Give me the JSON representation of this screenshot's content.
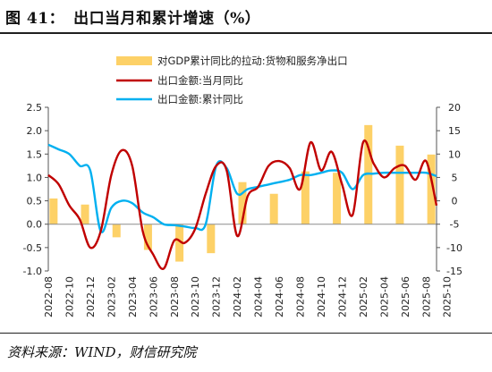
{
  "header": {
    "prefix": "图 41：",
    "title": "出口当月和累计增速（%）"
  },
  "source": "资料来源：WIND，财信研究院",
  "chart_data": {
    "type": "bar+line",
    "x_tick_labels": [
      "2022-08",
      "2022-10",
      "2022-12",
      "2023-02",
      "2023-04",
      "2023-06",
      "2023-08",
      "2023-10",
      "2023-12",
      "2024-02",
      "2024-04",
      "2024-06",
      "2024-08",
      "2024-10",
      "2024-12",
      "2025-02",
      "2025-04",
      "2025-06",
      "2025-08",
      "2025-10"
    ],
    "left_axis": {
      "ylim": [
        -1.0,
        2.5
      ],
      "ticks": [
        "-1.0",
        "-0.5",
        "0.0",
        "0.5",
        "1.0",
        "1.5",
        "2.0",
        "2.5"
      ],
      "tick_values": [
        -1.0,
        -0.5,
        0.0,
        0.5,
        1.0,
        1.5,
        2.0,
        2.5
      ]
    },
    "right_axis": {
      "ylim": [
        -15,
        20
      ],
      "ticks": [
        "-15",
        "-10",
        "-5",
        "0",
        "5",
        "10",
        "15",
        "20"
      ],
      "tick_values": [
        -15,
        -10,
        -5,
        0,
        5,
        10,
        15,
        20
      ]
    },
    "series": [
      {
        "name": "对GDP累计同比的拉动:货物和服务净出口",
        "type": "bar",
        "axis": "left",
        "color": "#fdd167",
        "points": [
          {
            "x": 0.5,
            "y": 0.55
          },
          {
            "x": 3.5,
            "y": 0.42
          },
          {
            "x": 6.5,
            "y": -0.28
          },
          {
            "x": 9.5,
            "y": -0.55
          },
          {
            "x": 12.5,
            "y": -0.8
          },
          {
            "x": 15.5,
            "y": -0.62
          },
          {
            "x": 18.5,
            "y": 0.9
          },
          {
            "x": 21.5,
            "y": 0.65
          },
          {
            "x": 24.5,
            "y": 1.13
          },
          {
            "x": 27.5,
            "y": 1.1
          },
          {
            "x": 30.5,
            "y": 2.12
          },
          {
            "x": 33.5,
            "y": 1.68
          },
          {
            "x": 36.5,
            "y": 1.49
          }
        ]
      },
      {
        "name": "出口金额:当月同比",
        "type": "line",
        "axis": "right",
        "color": "#c00000",
        "points": [
          {
            "x": 0,
            "y": 5.5
          },
          {
            "x": 1,
            "y": 3.5
          },
          {
            "x": 2,
            "y": -1
          },
          {
            "x": 3,
            "y": -4
          },
          {
            "x": 4,
            "y": -10
          },
          {
            "x": 5,
            "y": -6.5
          },
          {
            "x": 6,
            "y": 5.5
          },
          {
            "x": 7,
            "y": 10.8
          },
          {
            "x": 8,
            "y": 7.5
          },
          {
            "x": 9,
            "y": -6.5
          },
          {
            "x": 10,
            "y": -11.5
          },
          {
            "x": 11,
            "y": -14.5
          },
          {
            "x": 12,
            "y": -8.5
          },
          {
            "x": 13,
            "y": -9
          },
          {
            "x": 14,
            "y": -6
          },
          {
            "x": 15,
            "y": 1.5
          },
          {
            "x": 16,
            "y": 7.5
          },
          {
            "x": 17,
            "y": 6.5
          },
          {
            "x": 18,
            "y": -7.5
          },
          {
            "x": 19,
            "y": 1
          },
          {
            "x": 20,
            "y": 3
          },
          {
            "x": 21,
            "y": 7.5
          },
          {
            "x": 22,
            "y": 8.5
          },
          {
            "x": 23,
            "y": 7
          },
          {
            "x": 24,
            "y": 2.5
          },
          {
            "x": 25,
            "y": 12.5
          },
          {
            "x": 26,
            "y": 6.5
          },
          {
            "x": 27,
            "y": 10.5
          },
          {
            "x": 28,
            "y": 3.5
          },
          {
            "x": 29,
            "y": -3
          },
          {
            "x": 30,
            "y": 12.5
          },
          {
            "x": 31,
            "y": 8
          },
          {
            "x": 32,
            "y": 5
          },
          {
            "x": 33,
            "y": 7
          },
          {
            "x": 34,
            "y": 7.5
          },
          {
            "x": 35,
            "y": 4.5
          },
          {
            "x": 36,
            "y": 8.5
          },
          {
            "x": 37,
            "y": -1
          }
        ]
      },
      {
        "name": "出口金额:累计同比",
        "type": "line",
        "axis": "right",
        "color": "#00b0f0",
        "points": [
          {
            "x": 0,
            "y": 12
          },
          {
            "x": 1,
            "y": 11
          },
          {
            "x": 2,
            "y": 10
          },
          {
            "x": 3,
            "y": 7.5
          },
          {
            "x": 4,
            "y": 6.5
          },
          {
            "x": 5,
            "y": -6.5
          },
          {
            "x": 6,
            "y": -1.5
          },
          {
            "x": 7,
            "y": 0
          },
          {
            "x": 8,
            "y": -0.5
          },
          {
            "x": 9,
            "y": -2.5
          },
          {
            "x": 10,
            "y": -3.5
          },
          {
            "x": 11,
            "y": -5
          },
          {
            "x": 12,
            "y": -5.2
          },
          {
            "x": 13,
            "y": -5.5
          },
          {
            "x": 14,
            "y": -5.8
          },
          {
            "x": 15,
            "y": -5
          },
          {
            "x": 16,
            "y": 7.5
          },
          {
            "x": 17,
            "y": 7
          },
          {
            "x": 18,
            "y": 1.5
          },
          {
            "x": 19,
            "y": 2.5
          },
          {
            "x": 20,
            "y": 3
          },
          {
            "x": 21,
            "y": 3.5
          },
          {
            "x": 22,
            "y": 4
          },
          {
            "x": 23,
            "y": 4.5
          },
          {
            "x": 24,
            "y": 5.5
          },
          {
            "x": 25,
            "y": 5.5
          },
          {
            "x": 26,
            "y": 6
          },
          {
            "x": 27,
            "y": 6.5
          },
          {
            "x": 28,
            "y": 6
          },
          {
            "x": 29,
            "y": 2.5
          },
          {
            "x": 30,
            "y": 5.5
          },
          {
            "x": 31,
            "y": 5.8
          },
          {
            "x": 32,
            "y": 6
          },
          {
            "x": 33,
            "y": 6
          },
          {
            "x": 34,
            "y": 6
          },
          {
            "x": 35,
            "y": 6
          },
          {
            "x": 36,
            "y": 6
          },
          {
            "x": 37,
            "y": 5.3
          }
        ]
      }
    ],
    "legend_position": "top-center",
    "grid": false
  }
}
